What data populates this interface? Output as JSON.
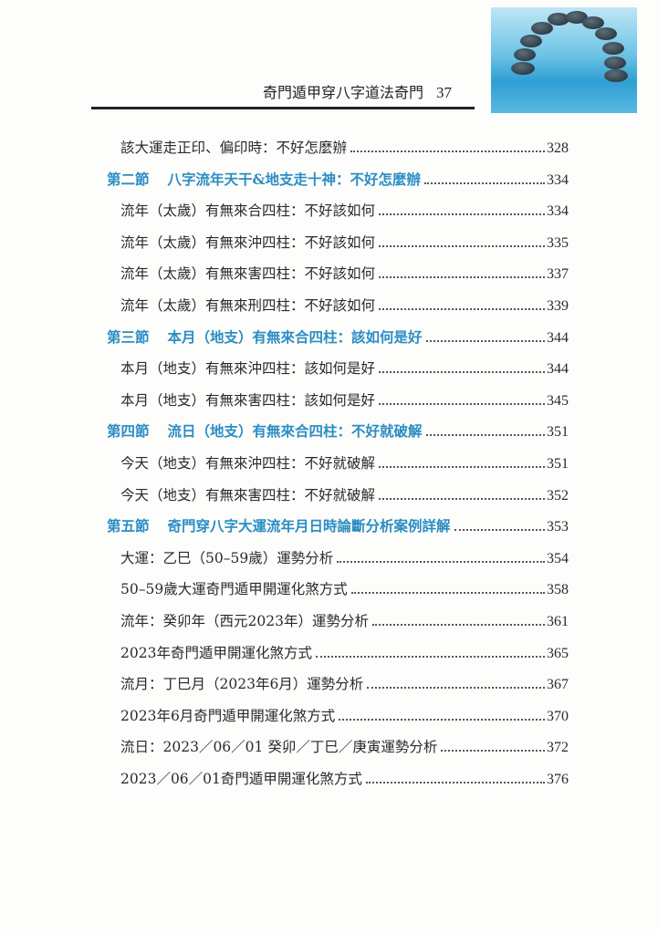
{
  "header": {
    "book_title": "奇門遁甲穿八字道法奇門",
    "page_number": "37"
  },
  "accent_color": "#2b8dc4",
  "entries": [
    {
      "type": "sub",
      "title": "該大運走正印、偏印時：不好怎麼辦",
      "page": "328"
    },
    {
      "type": "sec",
      "section": "第二節",
      "title": "八字流年天干&地支走十神：不好怎麼辦",
      "page": "334"
    },
    {
      "type": "sub",
      "title": "流年（太歲）有無來合四柱：不好該如何",
      "page": "334"
    },
    {
      "type": "sub",
      "title": "流年（太歲）有無來沖四柱：不好該如何",
      "page": "335"
    },
    {
      "type": "sub",
      "title": "流年（太歲）有無來害四柱：不好該如何",
      "page": "337"
    },
    {
      "type": "sub",
      "title": "流年（太歲）有無來刑四柱：不好該如何",
      "page": "339"
    },
    {
      "type": "sec",
      "section": "第三節",
      "title": "本月（地支）有無來合四柱：該如何是好",
      "page": "344"
    },
    {
      "type": "sub",
      "title": "本月（地支）有無來沖四柱：該如何是好",
      "page": "344"
    },
    {
      "type": "sub",
      "title": "本月（地支）有無來害四柱：該如何是好",
      "page": "345"
    },
    {
      "type": "sec",
      "section": "第四節",
      "title": "流日（地支）有無來合四柱：不好就破解",
      "page": "351"
    },
    {
      "type": "sub",
      "title": "今天（地支）有無來沖四柱：不好就破解",
      "page": "351"
    },
    {
      "type": "sub",
      "title": "今天（地支）有無來害四柱：不好就破解",
      "page": "352"
    },
    {
      "type": "sec",
      "section": "第五節",
      "title": "奇門穿八字大運流年月日時論斷分析案例詳解",
      "page": "353"
    },
    {
      "type": "sub",
      "title": "大運：乙巳（50–59歲）運勢分析",
      "page": "354"
    },
    {
      "type": "sub",
      "title": "50–59歲大運奇門遁甲開運化煞方式",
      "page": "358"
    },
    {
      "type": "sub",
      "title": "流年：癸卯年（西元2023年）運勢分析",
      "page": "361"
    },
    {
      "type": "sub",
      "title": "2023年奇門遁甲開運化煞方式",
      "page": "365"
    },
    {
      "type": "sub",
      "title": "流月：丁巳月（2023年6月）運勢分析",
      "page": "367"
    },
    {
      "type": "sub",
      "title": "2023年6月奇門遁甲開運化煞方式",
      "page": "370"
    },
    {
      "type": "sub",
      "title": "流日：2023／06／01 癸卯／丁巳／庚寅運勢分析",
      "page": "372"
    },
    {
      "type": "sub",
      "title": "2023／06／01奇門遁甲開運化煞方式",
      "page": "376"
    }
  ]
}
